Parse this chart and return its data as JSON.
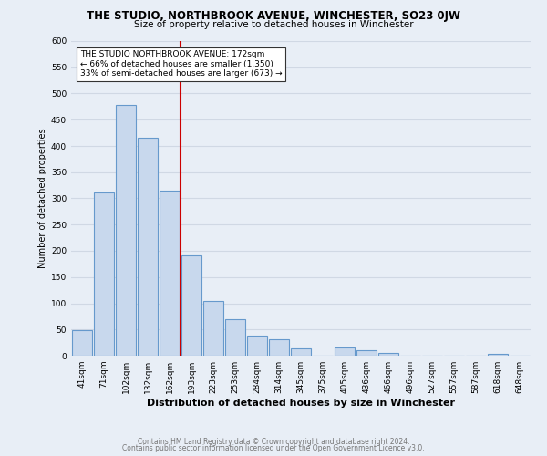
{
  "title": "THE STUDIO, NORTHBROOK AVENUE, WINCHESTER, SO23 0JW",
  "subtitle": "Size of property relative to detached houses in Winchester",
  "xlabel": "Distribution of detached houses by size in Winchester",
  "ylabel": "Number of detached properties",
  "bar_labels": [
    "41sqm",
    "71sqm",
    "102sqm",
    "132sqm",
    "162sqm",
    "193sqm",
    "223sqm",
    "253sqm",
    "284sqm",
    "314sqm",
    "345sqm",
    "375sqm",
    "405sqm",
    "436sqm",
    "466sqm",
    "496sqm",
    "527sqm",
    "557sqm",
    "587sqm",
    "618sqm",
    "648sqm"
  ],
  "bar_values": [
    48,
    311,
    478,
    415,
    315,
    192,
    105,
    69,
    38,
    32,
    14,
    0,
    15,
    10,
    5,
    0,
    0,
    0,
    0,
    3,
    0
  ],
  "bar_fill_color": "#c8d8ed",
  "bar_edge_color": "#6699cc",
  "vline_color": "#cc0000",
  "annotation_text": "THE STUDIO NORTHBROOK AVENUE: 172sqm\n← 66% of detached houses are smaller (1,350)\n33% of semi-detached houses are larger (673) →",
  "annotation_box_color": "white",
  "annotation_box_edge_color": "#333333",
  "ylim": [
    0,
    600
  ],
  "yticks": [
    0,
    50,
    100,
    150,
    200,
    250,
    300,
    350,
    400,
    450,
    500,
    550,
    600
  ],
  "footer_line1": "Contains HM Land Registry data © Crown copyright and database right 2024.",
  "footer_line2": "Contains public sector information licensed under the Open Government Licence v3.0.",
  "background_color": "#e8eef6",
  "grid_color": "#d0d8e4",
  "title_fontsize": 8.5,
  "subtitle_fontsize": 7.5,
  "xlabel_fontsize": 8.0,
  "ylabel_fontsize": 7.0,
  "tick_fontsize": 6.5,
  "annotation_fontsize": 6.5,
  "footer_fontsize": 5.5
}
